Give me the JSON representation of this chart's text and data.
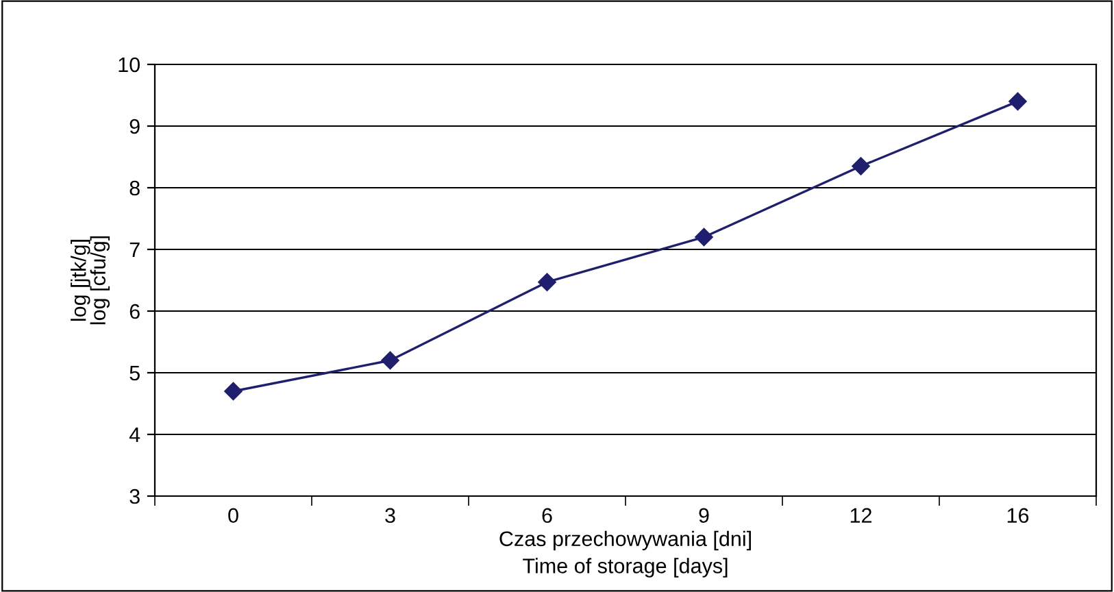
{
  "chart_data": {
    "type": "line",
    "xlabel": "Czas przechowywania [dni]\nTime of storage [days]",
    "ylabel": "log [jtk/g]\nlog [cfu/g]",
    "categories": [
      "0",
      "3",
      "6",
      "9",
      "12",
      "16"
    ],
    "series": [
      {
        "color": "#1f1f6e",
        "values": [
          4.7,
          5.2,
          6.47,
          7.2,
          8.35,
          9.4
        ]
      }
    ],
    "ylim": [
      3,
      10
    ],
    "yticks": [
      3,
      4,
      5,
      6,
      7,
      8,
      9,
      10
    ],
    "grid": "y",
    "marker": "diamond",
    "line_style": "solid",
    "legend": false
  }
}
